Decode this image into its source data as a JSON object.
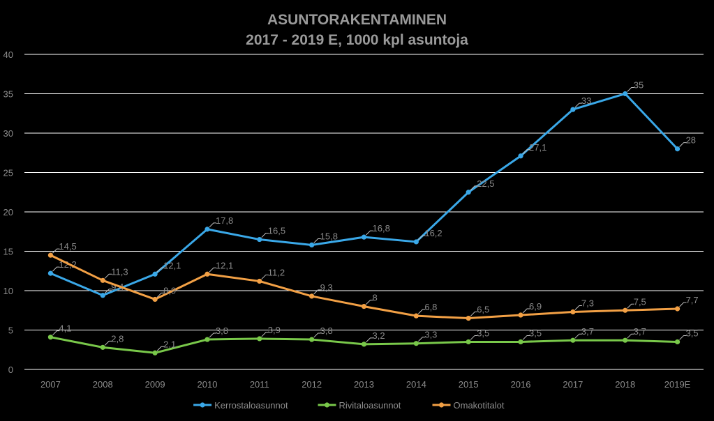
{
  "chart_data": {
    "type": "line",
    "title": "ASUNTORAKENTAMINEN",
    "subtitle": "2017 - 2019 E, 1000 kpl asuntoja",
    "categories": [
      "2007",
      "2008",
      "2009",
      "2010",
      "2011",
      "2012",
      "2013",
      "2014",
      "2015",
      "2016",
      "2017",
      "2018",
      "2019E"
    ],
    "ylim": [
      0,
      40
    ],
    "yticks": [
      "0",
      "5",
      "10",
      "15",
      "20",
      "25",
      "30",
      "35",
      "40"
    ],
    "grid": true,
    "legend_position": "bottom",
    "series": [
      {
        "name": "Kerrostaloasunnot",
        "color": "#3aa8e8",
        "values": [
          12.2,
          9.4,
          12.1,
          17.8,
          16.5,
          15.8,
          16.8,
          16.2,
          22.5,
          27.1,
          33,
          35,
          28
        ],
        "labels": [
          "12,2",
          "9,4",
          "12,1",
          "17,8",
          "16,5",
          "15,8",
          "16,8",
          "16,2",
          "22,5",
          "27,1",
          "33",
          "35",
          "28"
        ]
      },
      {
        "name": "Rivitaloasunnot",
        "color": "#79c84a",
        "values": [
          4.1,
          2.8,
          2.1,
          3.8,
          3.9,
          3.8,
          3.2,
          3.3,
          3.5,
          3.5,
          3.7,
          3.7,
          3.5
        ],
        "labels": [
          "4,1",
          "2,8",
          "2,1",
          "3,8",
          "3,9",
          "3,8",
          "3,2",
          "3,3",
          "3,5",
          "3,5",
          "3,7",
          "3,7",
          "3,5"
        ]
      },
      {
        "name": "Omakotitalot",
        "color": "#f2a045",
        "values": [
          14.5,
          11.3,
          8.9,
          12.1,
          11.2,
          9.3,
          8,
          6.8,
          6.5,
          6.9,
          7.3,
          7.5,
          7.7
        ],
        "labels": [
          "14,5",
          "11,3",
          "8,9",
          "12,1",
          "11,2",
          "9,3",
          "8",
          "6,8",
          "6,5",
          "6,9",
          "7,3",
          "7,5",
          "7,7"
        ]
      }
    ]
  }
}
